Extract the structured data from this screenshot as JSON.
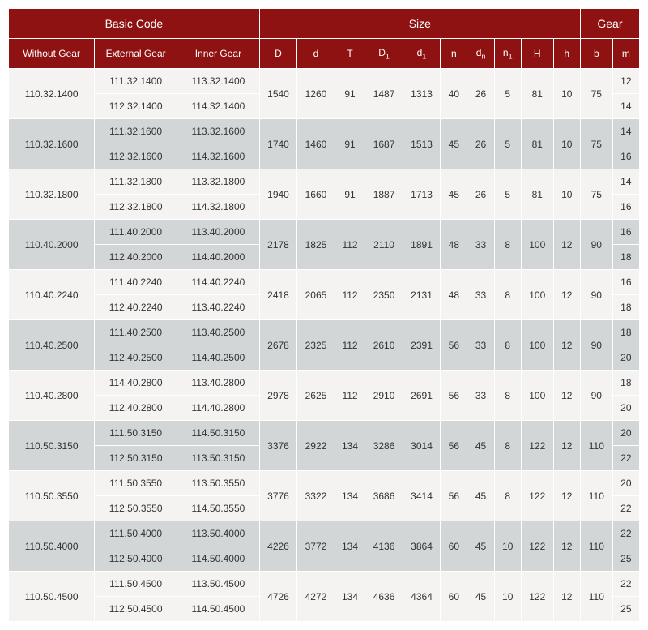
{
  "colors": {
    "header_bg": "#8f1212",
    "header_fg": "#ffffff",
    "row_light": "#f5f2f2",
    "row_dark": "#d2d6d6",
    "border": "#ffffff",
    "text": "#333333"
  },
  "header": {
    "basic_code": "Basic Code",
    "size": "Size",
    "gear": "Gear",
    "without_gear": "Without Gear",
    "external_gear": "External Gear",
    "inner_gear": "Inner Gear",
    "D": "D",
    "d": "d",
    "T": "T",
    "D1": "D",
    "D1_sub": "1",
    "d1": "d",
    "d1_sub": "1",
    "n": "n",
    "dn": "d",
    "dn_sub": "n",
    "n1": "n",
    "n1_sub": "1",
    "H": "H",
    "h": "h",
    "b": "b",
    "m": "m"
  },
  "groups": [
    {
      "shade": "light",
      "wg": "110.32.1400",
      "eg": [
        "111.32.1400",
        "112.32.1400"
      ],
      "ig": [
        "113.32.1400",
        "114.32.1400"
      ],
      "D": "1540",
      "d": "1260",
      "T": "91",
      "D1": "1487",
      "d1": "1313",
      "n": "40",
      "dn": "26",
      "n1": "5",
      "H": "81",
      "h": "10",
      "b": "75",
      "m": [
        "12",
        "14"
      ]
    },
    {
      "shade": "dark",
      "wg": "110.32.1600",
      "eg": [
        "111.32.1600",
        "112.32.1600"
      ],
      "ig": [
        "113.32.1600",
        "114.32.1600"
      ],
      "D": "1740",
      "d": "1460",
      "T": "91",
      "D1": "1687",
      "d1": "1513",
      "n": "45",
      "dn": "26",
      "n1": "5",
      "H": "81",
      "h": "10",
      "b": "75",
      "m": [
        "14",
        "16"
      ]
    },
    {
      "shade": "light",
      "wg": "110.32.1800",
      "eg": [
        "111.32.1800",
        "112.32.1800"
      ],
      "ig": [
        "113.32.1800",
        "114.32.1800"
      ],
      "D": "1940",
      "d": "1660",
      "T": "91",
      "D1": "1887",
      "d1": "1713",
      "n": "45",
      "dn": "26",
      "n1": "5",
      "H": "81",
      "h": "10",
      "b": "75",
      "m": [
        "14",
        "16"
      ]
    },
    {
      "shade": "dark",
      "wg": "110.40.2000",
      "eg": [
        "111.40.2000",
        "112.40.2000"
      ],
      "ig": [
        "113.40.2000",
        "114.40.2000"
      ],
      "D": "2178",
      "d": "1825",
      "T": "112",
      "D1": "2110",
      "d1": "1891",
      "n": "48",
      "dn": "33",
      "n1": "8",
      "H": "100",
      "h": "12",
      "b": "90",
      "m": [
        "16",
        "18"
      ]
    },
    {
      "shade": "light",
      "wg": "110.40.2240",
      "eg": [
        "111.40.2240",
        "112.40.2240"
      ],
      "ig": [
        "114.40.2240",
        "113.40.2240"
      ],
      "D": "2418",
      "d": "2065",
      "T": "112",
      "D1": "2350",
      "d1": "2131",
      "n": "48",
      "dn": "33",
      "n1": "8",
      "H": "100",
      "h": "12",
      "b": "90",
      "m": [
        "16",
        "18"
      ]
    },
    {
      "shade": "dark",
      "wg": "110.40.2500",
      "eg": [
        "111.40.2500",
        "112.40.2500"
      ],
      "ig": [
        "113.40.2500",
        "114.40.2500"
      ],
      "D": "2678",
      "d": "2325",
      "T": "112",
      "D1": "2610",
      "d1": "2391",
      "n": "56",
      "dn": "33",
      "n1": "8",
      "H": "100",
      "h": "12",
      "b": "90",
      "m": [
        "18",
        "20"
      ]
    },
    {
      "shade": "light",
      "wg": "110.40.2800",
      "eg": [
        "114.40.2800",
        "112.40.2800"
      ],
      "ig": [
        "113.40.2800",
        "114.40.2800"
      ],
      "D": "2978",
      "d": "2625",
      "T": "112",
      "D1": "2910",
      "d1": "2691",
      "n": "56",
      "dn": "33",
      "n1": "8",
      "H": "100",
      "h": "12",
      "b": "90",
      "m": [
        "18",
        "20"
      ]
    },
    {
      "shade": "dark",
      "wg": "110.50.3150",
      "eg": [
        "111.50.3150",
        "112.50.3150"
      ],
      "ig": [
        "114.50.3150",
        "113.50.3150"
      ],
      "D": "3376",
      "d": "2922",
      "T": "134",
      "D1": "3286",
      "d1": "3014",
      "n": "56",
      "dn": "45",
      "n1": "8",
      "H": "122",
      "h": "12",
      "b": "110",
      "m": [
        "20",
        "22"
      ]
    },
    {
      "shade": "light",
      "wg": "110.50.3550",
      "eg": [
        "111.50.3550",
        "112.50.3550"
      ],
      "ig": [
        "113.50.3550",
        "114.50.3550"
      ],
      "D": "3776",
      "d": "3322",
      "T": "134",
      "D1": "3686",
      "d1": "3414",
      "n": "56",
      "dn": "45",
      "n1": "8",
      "H": "122",
      "h": "12",
      "b": "110",
      "m": [
        "20",
        "22"
      ]
    },
    {
      "shade": "dark",
      "wg": "110.50.4000",
      "eg": [
        "111.50.4000",
        "112.50.4000"
      ],
      "ig": [
        "113.50.4000",
        "114.50.4000"
      ],
      "D": "4226",
      "d": "3772",
      "T": "134",
      "D1": "4136",
      "d1": "3864",
      "n": "60",
      "dn": "45",
      "n1": "10",
      "H": "122",
      "h": "12",
      "b": "110",
      "m": [
        "22",
        "25"
      ]
    },
    {
      "shade": "light",
      "wg": "110.50.4500",
      "eg": [
        "111.50.4500",
        "112.50.4500"
      ],
      "ig": [
        "113.50.4500",
        "114.50.4500"
      ],
      "D": "4726",
      "d": "4272",
      "T": "134",
      "D1": "4636",
      "d1": "4364",
      "n": "60",
      "dn": "45",
      "n1": "10",
      "H": "122",
      "h": "12",
      "b": "110",
      "m": [
        "22",
        "25"
      ]
    }
  ]
}
